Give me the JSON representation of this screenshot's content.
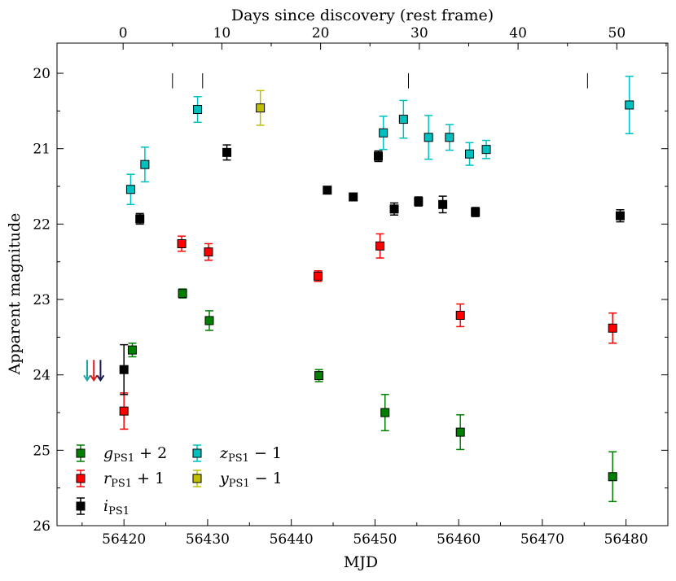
{
  "chart_data": {
    "type": "scatter",
    "xlabel": "MJD",
    "ylabel": "Apparent magnitude",
    "top_xlabel": "Days since discovery (rest frame)",
    "xlim": [
      56412,
      56485
    ],
    "ylim": [
      26,
      19.6
    ],
    "y_inverted": true,
    "x_ticks": [
      56420,
      56430,
      56440,
      56450,
      56460,
      56470,
      56480
    ],
    "y_ticks": [
      20,
      21,
      22,
      23,
      24,
      25,
      26
    ],
    "top_ticks": [
      0,
      10,
      20,
      30,
      40,
      50
    ],
    "top_axis_mapping": {
      "mjd_at_day0": 56419.9,
      "mjd_per_day": 1.18
    },
    "spectrum_epochs_mjd": [
      56425.8,
      56429.4,
      56454.0,
      56475.4
    ],
    "upper_limits": [
      {
        "band": "z",
        "mjd": 56415.6,
        "mag": 23.92
      },
      {
        "band": "r",
        "mjd": 56416.4,
        "mag": 23.92
      },
      {
        "band": "i",
        "mjd": 56417.2,
        "mag": 23.92
      }
    ],
    "series": [
      {
        "name": "g_PS1 + 2",
        "band": "g",
        "color": "#007f00",
        "points": [
          {
            "x": 56421.0,
            "y": 23.67,
            "err": 0.09
          },
          {
            "x": 56427.0,
            "y": 22.92,
            "err": 0.06
          },
          {
            "x": 56430.2,
            "y": 23.28,
            "err": 0.13
          },
          {
            "x": 56443.3,
            "y": 24.01,
            "err": 0.08
          },
          {
            "x": 56451.2,
            "y": 24.5,
            "err": 0.24
          },
          {
            "x": 56460.2,
            "y": 24.76,
            "err": 0.23
          },
          {
            "x": 56478.4,
            "y": 25.35,
            "err": 0.33
          }
        ]
      },
      {
        "name": "r_PS1 + 1",
        "band": "r",
        "color": "#ff0000",
        "points": [
          {
            "x": 56420.0,
            "y": 24.48,
            "err": 0.24
          },
          {
            "x": 56426.9,
            "y": 22.26,
            "err": 0.1
          },
          {
            "x": 56430.1,
            "y": 22.37,
            "err": 0.11
          },
          {
            "x": 56443.2,
            "y": 22.69,
            "err": 0.07
          },
          {
            "x": 56450.6,
            "y": 22.29,
            "err": 0.16
          },
          {
            "x": 56460.2,
            "y": 23.21,
            "err": 0.15
          },
          {
            "x": 56478.4,
            "y": 23.38,
            "err": 0.2
          }
        ]
      },
      {
        "name": "i_PS1",
        "band": "i",
        "color": "#000000",
        "points": [
          {
            "x": 56420.0,
            "y": 23.93,
            "err": 0.33
          },
          {
            "x": 56421.9,
            "y": 21.93,
            "err": 0.07
          },
          {
            "x": 56432.3,
            "y": 21.05,
            "err": 0.1
          },
          {
            "x": 56444.3,
            "y": 21.55,
            "err": 0.04
          },
          {
            "x": 56447.4,
            "y": 21.64,
            "err": 0.04
          },
          {
            "x": 56450.4,
            "y": 21.1,
            "err": 0.07
          },
          {
            "x": 56452.3,
            "y": 21.8,
            "err": 0.08
          },
          {
            "x": 56455.2,
            "y": 21.7,
            "err": 0.06
          },
          {
            "x": 56458.1,
            "y": 21.74,
            "err": 0.11
          },
          {
            "x": 56462.0,
            "y": 21.84,
            "err": 0.06
          },
          {
            "x": 56479.3,
            "y": 21.89,
            "err": 0.08
          }
        ]
      },
      {
        "name": "z_PS1 − 1",
        "band": "z",
        "color": "#00bfbf",
        "points": [
          {
            "x": 56420.8,
            "y": 21.54,
            "err": 0.2
          },
          {
            "x": 56422.5,
            "y": 21.21,
            "err": 0.23
          },
          {
            "x": 56428.8,
            "y": 20.48,
            "err": 0.17
          },
          {
            "x": 56451.0,
            "y": 20.79,
            "err": 0.22
          },
          {
            "x": 56453.4,
            "y": 20.61,
            "err": 0.25
          },
          {
            "x": 56456.4,
            "y": 20.85,
            "err": 0.29
          },
          {
            "x": 56458.9,
            "y": 20.85,
            "err": 0.17
          },
          {
            "x": 56461.3,
            "y": 21.07,
            "err": 0.15
          },
          {
            "x": 56463.3,
            "y": 21.01,
            "err": 0.12
          },
          {
            "x": 56480.4,
            "y": 20.42,
            "err": 0.38
          }
        ]
      },
      {
        "name": "y_PS1 − 1",
        "band": "y",
        "color": "#bfbf00",
        "points": [
          {
            "x": 56436.3,
            "y": 20.46,
            "err": 0.23
          }
        ]
      }
    ],
    "legend": {
      "location": "bottom-left",
      "columns": 2,
      "entries": [
        {
          "band": "g",
          "symbol": "g",
          "sub": "PS1",
          "suffix": " + 2"
        },
        {
          "band": "r",
          "symbol": "r",
          "sub": "PS1",
          "suffix": " + 1"
        },
        {
          "band": "i",
          "symbol": "i",
          "sub": "PS1",
          "suffix": ""
        },
        {
          "band": "z",
          "symbol": "z",
          "sub": "PS1",
          "suffix": " − 1"
        },
        {
          "band": "y",
          "symbol": "y",
          "sub": "PS1",
          "suffix": " − 1"
        }
      ]
    }
  }
}
